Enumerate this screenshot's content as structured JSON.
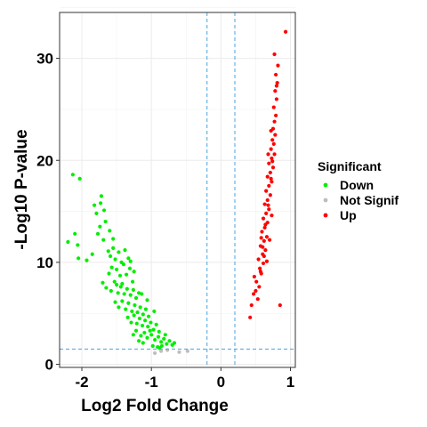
{
  "chart_data": {
    "type": "scatter",
    "title": "",
    "xlabel": "Log2 Fold Change",
    "ylabel": "-Log10 P-value",
    "xlim": [
      -2.32,
      1.07
    ],
    "ylim": [
      -0.3,
      34.5
    ],
    "xticks": [
      -2,
      -1,
      0,
      1
    ],
    "xtick_labels": [
      "-2",
      "-1",
      "0",
      "1"
    ],
    "yticks": [
      0,
      10,
      20,
      30
    ],
    "ytick_labels": [
      "0",
      "10",
      "20",
      "30"
    ],
    "grid": true,
    "thresholds": {
      "vertical": [
        -0.2,
        0.2
      ],
      "horizontal": [
        1.5
      ]
    },
    "legend": {
      "title": "Significant",
      "position": "right",
      "entries": [
        {
          "label": "Down",
          "color": "#00ee00"
        },
        {
          "label": "Not Signif",
          "color": "#bebebe"
        },
        {
          "label": "Up",
          "color": "#ff0000"
        }
      ]
    },
    "series": [
      {
        "name": "Down",
        "color": "#00ee00",
        "points": [
          [
            -2.13,
            18.6
          ],
          [
            -2.03,
            18.2
          ],
          [
            -2.2,
            12.0
          ],
          [
            -2.06,
            11.7
          ],
          [
            -2.1,
            12.8
          ],
          [
            -2.05,
            10.4
          ],
          [
            -1.93,
            10.2
          ],
          [
            -1.85,
            10.8
          ],
          [
            -1.72,
            16.5
          ],
          [
            -1.73,
            15.8
          ],
          [
            -1.79,
            14.8
          ],
          [
            -1.77,
            12.8
          ],
          [
            -1.74,
            13.5
          ],
          [
            -1.69,
            12.2
          ],
          [
            -1.62,
            11.1
          ],
          [
            -1.66,
            14.0
          ],
          [
            -1.68,
            15.1
          ],
          [
            -1.82,
            15.6
          ],
          [
            -1.59,
            10.6
          ],
          [
            -1.55,
            11.4
          ],
          [
            -1.47,
            11.0
          ],
          [
            -1.52,
            10.3
          ],
          [
            -1.43,
            10.0
          ],
          [
            -1.38,
            11.2
          ],
          [
            -1.33,
            10.4
          ],
          [
            -1.61,
            8.9
          ],
          [
            -1.57,
            9.5
          ],
          [
            -1.5,
            9.3
          ],
          [
            -1.45,
            8.7
          ],
          [
            -1.4,
            9.8
          ],
          [
            -1.36,
            8.8
          ],
          [
            -1.31,
            9.4
          ],
          [
            -1.27,
            8.1
          ],
          [
            -1.7,
            8.0
          ],
          [
            -1.65,
            7.5
          ],
          [
            -1.58,
            7.2
          ],
          [
            -1.53,
            8.1
          ],
          [
            -1.48,
            7.0
          ],
          [
            -1.44,
            7.6
          ],
          [
            -1.39,
            6.9
          ],
          [
            -1.35,
            7.4
          ],
          [
            -1.3,
            6.8
          ],
          [
            -1.26,
            7.3
          ],
          [
            -1.22,
            6.5
          ],
          [
            -1.18,
            7.0
          ],
          [
            -1.52,
            6.1
          ],
          [
            -1.47,
            5.6
          ],
          [
            -1.42,
            6.2
          ],
          [
            -1.37,
            5.4
          ],
          [
            -1.33,
            6.0
          ],
          [
            -1.28,
            5.2
          ],
          [
            -1.24,
            5.8
          ],
          [
            -1.2,
            5.1
          ],
          [
            -1.16,
            5.6
          ],
          [
            -1.12,
            4.9
          ],
          [
            -1.08,
            5.4
          ],
          [
            -1.04,
            4.7
          ],
          [
            -1.34,
            4.6
          ],
          [
            -1.29,
            4.1
          ],
          [
            -1.25,
            4.8
          ],
          [
            -1.21,
            4.0
          ],
          [
            -1.17,
            4.5
          ],
          [
            -1.13,
            3.8
          ],
          [
            -1.09,
            4.3
          ],
          [
            -1.05,
            3.7
          ],
          [
            -1.01,
            4.1
          ],
          [
            -0.97,
            3.4
          ],
          [
            -0.93,
            3.9
          ],
          [
            -0.89,
            3.2
          ],
          [
            -1.22,
            3.3
          ],
          [
            -1.15,
            2.8
          ],
          [
            -1.1,
            3.1
          ],
          [
            -1.06,
            2.6
          ],
          [
            -1.0,
            2.9
          ],
          [
            -0.95,
            2.4
          ],
          [
            -0.9,
            2.7
          ],
          [
            -0.86,
            2.2
          ],
          [
            -0.82,
            2.5
          ],
          [
            -0.78,
            2.0
          ],
          [
            -0.74,
            2.3
          ],
          [
            -0.7,
            1.9
          ],
          [
            -0.67,
            2.1
          ],
          [
            -0.98,
            1.8
          ],
          [
            -0.91,
            1.7
          ],
          [
            -0.85,
            1.8
          ],
          [
            -1.26,
            2.9
          ],
          [
            -1.18,
            2.3
          ],
          [
            -0.96,
            5.2
          ],
          [
            -1.06,
            6.3
          ],
          [
            -1.14,
            6.9
          ],
          [
            -1.25,
            9.1
          ],
          [
            -1.3,
            10.1
          ],
          [
            -1.55,
            12.3
          ],
          [
            -1.6,
            13.1
          ],
          [
            -1.5,
            7.8
          ],
          [
            -1.42,
            7.9
          ],
          [
            -1.02,
            3.3
          ],
          [
            -0.8,
            2.9
          ],
          [
            -1.12,
            2.1
          ],
          [
            -0.88,
            1.6
          ]
        ]
      },
      {
        "name": "Not Signif",
        "color": "#bebebe",
        "points": [
          [
            -0.86,
            1.3
          ],
          [
            -0.77,
            1.4
          ],
          [
            -0.6,
            1.2
          ],
          [
            -0.48,
            1.3
          ],
          [
            -0.95,
            1.1
          ]
        ]
      },
      {
        "name": "Up",
        "color": "#ff0000",
        "points": [
          [
            0.42,
            4.6
          ],
          [
            0.44,
            5.8
          ],
          [
            0.5,
            7.2
          ],
          [
            0.47,
            6.9
          ],
          [
            0.53,
            6.4
          ],
          [
            0.51,
            8.1
          ],
          [
            0.55,
            7.6
          ],
          [
            0.48,
            8.6
          ],
          [
            0.58,
            8.9
          ],
          [
            0.56,
            9.4
          ],
          [
            0.61,
            9.9
          ],
          [
            0.54,
            10.3
          ],
          [
            0.6,
            10.8
          ],
          [
            0.64,
            11.2
          ],
          [
            0.57,
            11.6
          ],
          [
            0.62,
            12.1
          ],
          [
            0.66,
            12.5
          ],
          [
            0.59,
            13.0
          ],
          [
            0.63,
            13.4
          ],
          [
            0.67,
            13.9
          ],
          [
            0.61,
            14.3
          ],
          [
            0.65,
            14.8
          ],
          [
            0.69,
            15.2
          ],
          [
            0.63,
            15.7
          ],
          [
            0.67,
            16.1
          ],
          [
            0.71,
            16.6
          ],
          [
            0.65,
            17.0
          ],
          [
            0.69,
            17.5
          ],
          [
            0.73,
            17.9
          ],
          [
            0.67,
            18.4
          ],
          [
            0.71,
            18.8
          ],
          [
            0.75,
            19.3
          ],
          [
            0.69,
            19.7
          ],
          [
            0.73,
            20.2
          ],
          [
            0.77,
            20.6
          ],
          [
            0.72,
            21.1
          ],
          [
            0.76,
            21.6
          ],
          [
            0.74,
            22.0
          ],
          [
            0.78,
            22.5
          ],
          [
            0.75,
            23.1
          ],
          [
            0.77,
            23.8
          ],
          [
            0.79,
            24.4
          ],
          [
            0.76,
            25.2
          ],
          [
            0.8,
            26.0
          ],
          [
            0.78,
            26.8
          ],
          [
            0.81,
            27.6
          ],
          [
            0.79,
            28.4
          ],
          [
            0.82,
            29.3
          ],
          [
            0.77,
            30.4
          ],
          [
            0.8,
            27.3
          ],
          [
            0.93,
            32.6
          ],
          [
            0.85,
            5.8
          ],
          [
            0.57,
            9.1
          ],
          [
            0.6,
            11.5
          ],
          [
            0.64,
            13.7
          ],
          [
            0.68,
            15.6
          ],
          [
            0.72,
            18.2
          ],
          [
            0.74,
            19.9
          ],
          [
            0.7,
            12.2
          ],
          [
            0.62,
            10.6
          ],
          [
            0.66,
            10.1
          ],
          [
            0.58,
            12.4
          ],
          [
            0.73,
            14.6
          ],
          [
            0.68,
            20.6
          ],
          [
            0.72,
            22.9
          ]
        ]
      }
    ]
  }
}
